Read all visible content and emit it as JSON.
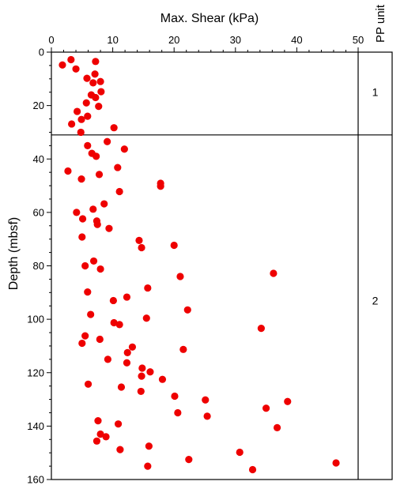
{
  "chart_data": {
    "type": "scatter",
    "xlabel": "Max. Shear (kPa)",
    "ylabel": "Depth  (mbsf)",
    "xlim": [
      0,
      50
    ],
    "ylim": [
      0,
      160
    ],
    "y_inverted": true,
    "x_axis_position": "top",
    "x_ticks": [
      0,
      10,
      20,
      30,
      40,
      50
    ],
    "y_ticks": [
      0,
      20,
      40,
      60,
      80,
      100,
      120,
      140,
      160
    ],
    "grid": false,
    "marker_color": "#ee0000",
    "units_panel": {
      "title": "PP unit",
      "boundary_depth": 31,
      "units": [
        {
          "label": "1",
          "depth": 15
        },
        {
          "label": "2",
          "depth": 93
        }
      ]
    },
    "points": [
      {
        "x": 1.8,
        "y": 4.8
      },
      {
        "x": 3.2,
        "y": 2.8
      },
      {
        "x": 4.0,
        "y": 6.3
      },
      {
        "x": 7.2,
        "y": 3.5
      },
      {
        "x": 7.1,
        "y": 8.2
      },
      {
        "x": 5.8,
        "y": 9.8
      },
      {
        "x": 8.0,
        "y": 11.0
      },
      {
        "x": 6.8,
        "y": 11.5
      },
      {
        "x": 8.1,
        "y": 14.8
      },
      {
        "x": 6.5,
        "y": 16.0
      },
      {
        "x": 7.2,
        "y": 17.0
      },
      {
        "x": 5.7,
        "y": 19.0
      },
      {
        "x": 7.7,
        "y": 20.3
      },
      {
        "x": 4.2,
        "y": 22.2
      },
      {
        "x": 5.9,
        "y": 24.0
      },
      {
        "x": 4.9,
        "y": 25.2
      },
      {
        "x": 3.3,
        "y": 26.9
      },
      {
        "x": 10.2,
        "y": 28.3
      },
      {
        "x": 4.8,
        "y": 30.0
      },
      {
        "x": 9.1,
        "y": 33.5
      },
      {
        "x": 5.9,
        "y": 35.0
      },
      {
        "x": 11.9,
        "y": 36.3
      },
      {
        "x": 6.6,
        "y": 37.9
      },
      {
        "x": 7.3,
        "y": 39.0
      },
      {
        "x": 10.8,
        "y": 43.2
      },
      {
        "x": 2.7,
        "y": 44.5
      },
      {
        "x": 7.8,
        "y": 45.8
      },
      {
        "x": 4.9,
        "y": 47.5
      },
      {
        "x": 17.8,
        "y": 49.1
      },
      {
        "x": 17.8,
        "y": 50.2
      },
      {
        "x": 11.1,
        "y": 52.2
      },
      {
        "x": 8.6,
        "y": 56.8
      },
      {
        "x": 6.8,
        "y": 58.8
      },
      {
        "x": 4.1,
        "y": 60.0
      },
      {
        "x": 5.1,
        "y": 62.4
      },
      {
        "x": 7.4,
        "y": 63.2
      },
      {
        "x": 7.5,
        "y": 64.5
      },
      {
        "x": 9.4,
        "y": 66.0
      },
      {
        "x": 5.0,
        "y": 69.2
      },
      {
        "x": 14.3,
        "y": 70.5
      },
      {
        "x": 14.7,
        "y": 73.2
      },
      {
        "x": 20.0,
        "y": 72.3
      },
      {
        "x": 6.9,
        "y": 78.2
      },
      {
        "x": 5.5,
        "y": 80.0
      },
      {
        "x": 8.0,
        "y": 81.2
      },
      {
        "x": 21.0,
        "y": 84.0
      },
      {
        "x": 36.2,
        "y": 82.8
      },
      {
        "x": 15.7,
        "y": 88.3
      },
      {
        "x": 5.9,
        "y": 89.8
      },
      {
        "x": 12.3,
        "y": 91.7
      },
      {
        "x": 10.1,
        "y": 93.0
      },
      {
        "x": 22.2,
        "y": 96.5
      },
      {
        "x": 6.4,
        "y": 98.2
      },
      {
        "x": 15.5,
        "y": 99.6
      },
      {
        "x": 10.2,
        "y": 101.3
      },
      {
        "x": 11.1,
        "y": 102.0
      },
      {
        "x": 34.2,
        "y": 103.4
      },
      {
        "x": 5.5,
        "y": 106.2
      },
      {
        "x": 7.9,
        "y": 107.5
      },
      {
        "x": 5.0,
        "y": 109.0
      },
      {
        "x": 13.2,
        "y": 110.4
      },
      {
        "x": 21.5,
        "y": 111.3
      },
      {
        "x": 12.4,
        "y": 112.5
      },
      {
        "x": 9.2,
        "y": 115.0
      },
      {
        "x": 12.3,
        "y": 116.3
      },
      {
        "x": 14.8,
        "y": 118.3
      },
      {
        "x": 16.1,
        "y": 119.7
      },
      {
        "x": 14.7,
        "y": 121.3
      },
      {
        "x": 18.1,
        "y": 122.5
      },
      {
        "x": 6.0,
        "y": 124.3
      },
      {
        "x": 11.4,
        "y": 125.4
      },
      {
        "x": 14.6,
        "y": 127.0
      },
      {
        "x": 20.1,
        "y": 128.8
      },
      {
        "x": 25.1,
        "y": 130.2
      },
      {
        "x": 38.5,
        "y": 130.8
      },
      {
        "x": 35.0,
        "y": 133.3
      },
      {
        "x": 20.6,
        "y": 135.0
      },
      {
        "x": 25.4,
        "y": 136.3
      },
      {
        "x": 7.6,
        "y": 138.0
      },
      {
        "x": 10.9,
        "y": 139.2
      },
      {
        "x": 36.8,
        "y": 140.6
      },
      {
        "x": 8.0,
        "y": 143.0
      },
      {
        "x": 8.9,
        "y": 144.0
      },
      {
        "x": 7.4,
        "y": 145.6
      },
      {
        "x": 15.9,
        "y": 147.5
      },
      {
        "x": 11.2,
        "y": 148.8
      },
      {
        "x": 30.7,
        "y": 149.8
      },
      {
        "x": 22.4,
        "y": 152.5
      },
      {
        "x": 46.4,
        "y": 153.8
      },
      {
        "x": 15.7,
        "y": 155.0
      },
      {
        "x": 32.8,
        "y": 156.3
      }
    ]
  }
}
